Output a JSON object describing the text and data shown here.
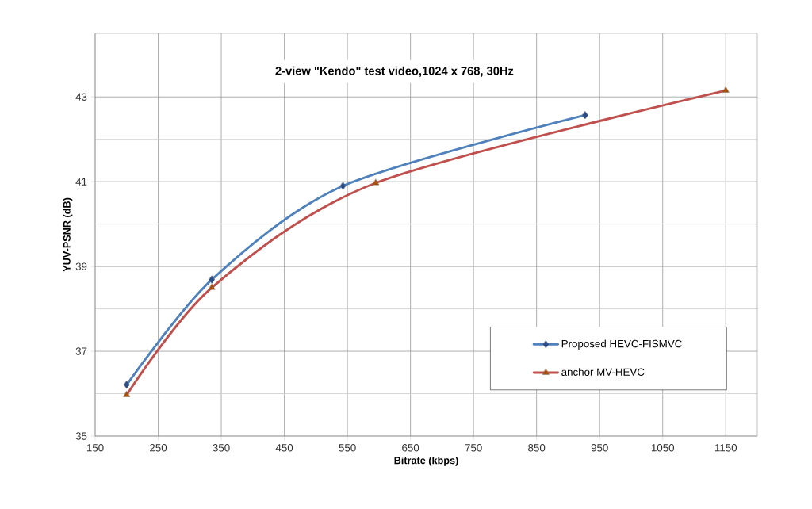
{
  "chart_data": {
    "type": "line",
    "title": "2-view \"Kendo\" test video,1024 x 768, 30Hz",
    "xlabel": "Bitrate (kbps)",
    "ylabel": "YUV-PSNR (dB)",
    "xlim": [
      150,
      1200
    ],
    "ylim": [
      35,
      44.5
    ],
    "xticks": [
      150,
      250,
      350,
      450,
      550,
      650,
      750,
      850,
      950,
      1050,
      1150
    ],
    "yticks": [
      35,
      37,
      39,
      41,
      43
    ],
    "grid": true,
    "legend": "bottom right",
    "line_style": "solid",
    "series": [
      {
        "name": "Proposed HEVC-FISMVC",
        "color": "#4f81bd",
        "marker": "diamond",
        "x": [
          200,
          335,
          543,
          927
        ],
        "values": [
          36.21,
          38.69,
          40.9,
          42.57
        ]
      },
      {
        "name": "anchor MV-HEVC",
        "color": "#c0504d",
        "marker": "triangle",
        "x": [
          200,
          335,
          595,
          1150
        ],
        "values": [
          35.97,
          38.5,
          40.97,
          43.15
        ]
      }
    ]
  }
}
